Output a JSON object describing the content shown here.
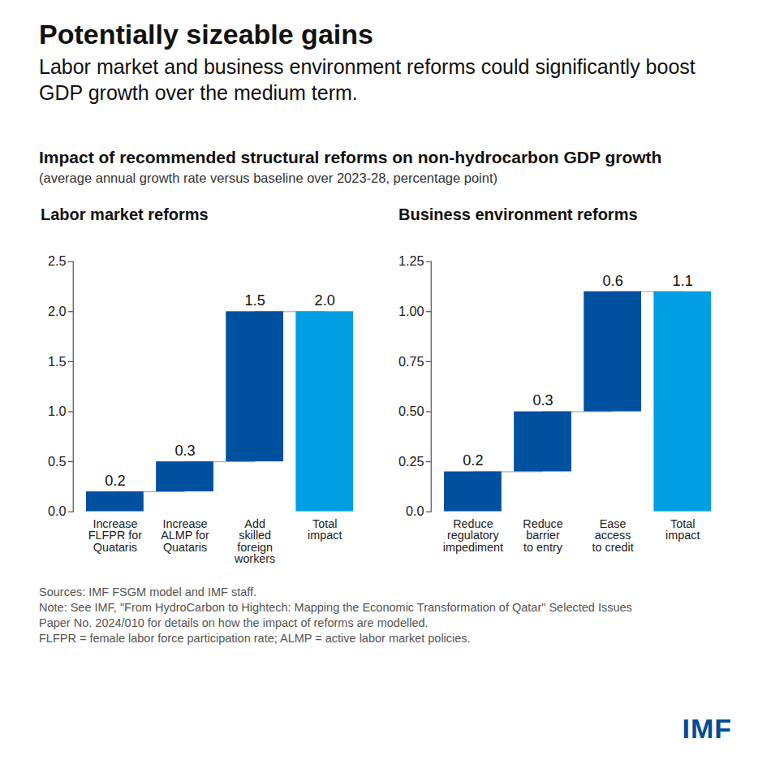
{
  "title": "Potentially sizeable gains",
  "subtitle": "Labor market and business environment reforms could significantly boost GDP growth over the medium term.",
  "chart_title": "Impact of recommended structural reforms on non-hydrocarbon GDP growth",
  "units": "(average annual growth rate versus baseline over 2023-28, percentage point)",
  "sources": "Sources: IMF FSGM model and IMF staff.",
  "note": "Note: See IMF, \"From HydroCarbon to Hightech: Mapping the Economic Transformation of Qatar\" Selected Issues Paper No. 2024/010 for details on how the impact of reforms are modelled.",
  "abbreviations": "FLFPR = female labor force participation rate; ALMP = active labor market policies.",
  "logo": "IMF",
  "chart_data": [
    {
      "type": "waterfall",
      "title": "Labor market reforms",
      "categories": [
        "Increase\nFLFPR for\nQuataris",
        "Increase\nALMP for\nQuataris",
        "Add\nskilled\nforeign\nworkers",
        "Total\nimpact"
      ],
      "values": [
        0.2,
        0.3,
        1.5,
        2.0
      ],
      "value_labels": [
        "0.2",
        "0.3",
        "1.5",
        "2.0"
      ],
      "colors": [
        "#0050a0",
        "#0050a0",
        "#0050a0",
        "#009fe3"
      ],
      "ylim": [
        0,
        2.5
      ],
      "yticks": [
        {
          "value": 0,
          "label": "0.0"
        },
        {
          "value": 0.5,
          "label": "0.5"
        },
        {
          "value": 1,
          "label": "1.0"
        },
        {
          "value": 1.5,
          "label": "1.5"
        },
        {
          "value": 2,
          "label": "2.0"
        },
        {
          "value": 2.5,
          "label": "2.5"
        }
      ],
      "data_labels": true,
      "grid": false
    },
    {
      "type": "waterfall",
      "title": "Business environment reforms",
      "categories": [
        "Reduce\nregulatory\nimpediment",
        "Reduce\nbarrier\nto entry",
        "Ease\naccess\nto credit",
        "Total\nimpact"
      ],
      "values": [
        0.2,
        0.3,
        0.6,
        1.1
      ],
      "value_labels": [
        "0.2",
        "0.3",
        "0.6",
        "1.1"
      ],
      "colors": [
        "#0050a0",
        "#0050a0",
        "#0050a0",
        "#009fe3"
      ],
      "ylim": [
        0,
        1.25
      ],
      "yticks": [
        {
          "value": 0,
          "label": "0.0"
        },
        {
          "value": 0.25,
          "label": "0.25"
        },
        {
          "value": 0.5,
          "label": "0.50"
        },
        {
          "value": 0.75,
          "label": "0.75"
        },
        {
          "value": 1,
          "label": "1.00"
        },
        {
          "value": 1.25,
          "label": "1.25"
        }
      ],
      "data_labels": true,
      "grid": false
    }
  ]
}
